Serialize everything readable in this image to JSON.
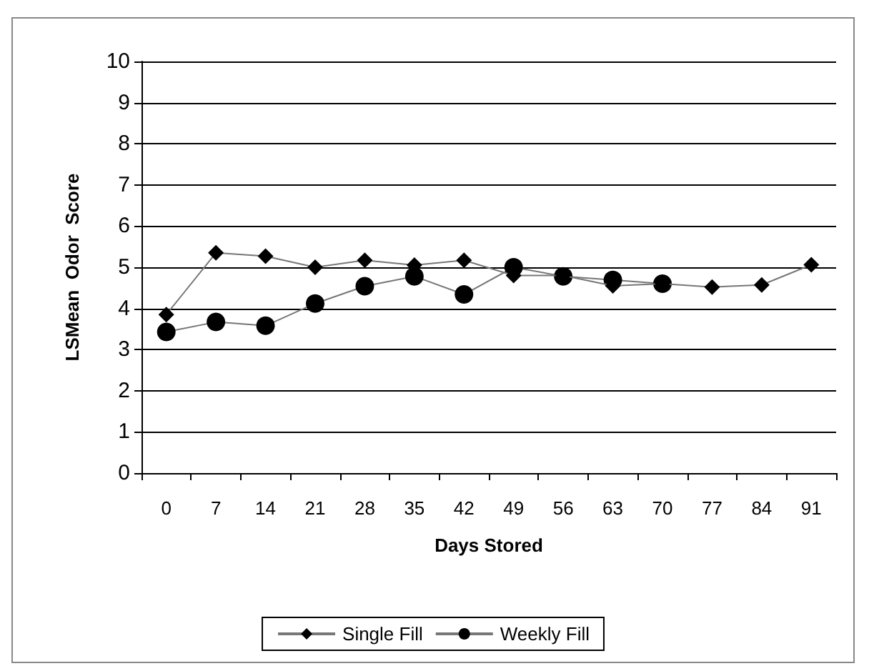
{
  "chart_data": {
    "type": "line",
    "xlabel": "Days Stored",
    "ylabel": "LSMean  Odor  Score",
    "categories": [
      "0",
      "7",
      "14",
      "21",
      "28",
      "35",
      "42",
      "49",
      "56",
      "63",
      "70",
      "77",
      "84",
      "91"
    ],
    "series": [
      {
        "name": "Single Fill",
        "color": "#000000",
        "marker": "diamond",
        "values": [
          3.85,
          5.35,
          5.27,
          5.0,
          5.17,
          5.05,
          5.17,
          4.8,
          4.8,
          4.55,
          4.6,
          4.52,
          4.57,
          5.06
        ]
      },
      {
        "name": "Weekly Fill",
        "color": "#000000",
        "marker": "circle",
        "values": [
          3.43,
          3.67,
          3.58,
          4.12,
          4.54,
          4.78,
          4.34,
          5.0,
          4.78,
          4.69,
          4.6,
          null,
          null,
          null
        ]
      }
    ],
    "ylim": [
      0,
      10
    ],
    "yticks": [
      0,
      1,
      2,
      3,
      4,
      5,
      6,
      7,
      8,
      9,
      10
    ],
    "grid": "y",
    "legend": "bottom"
  }
}
